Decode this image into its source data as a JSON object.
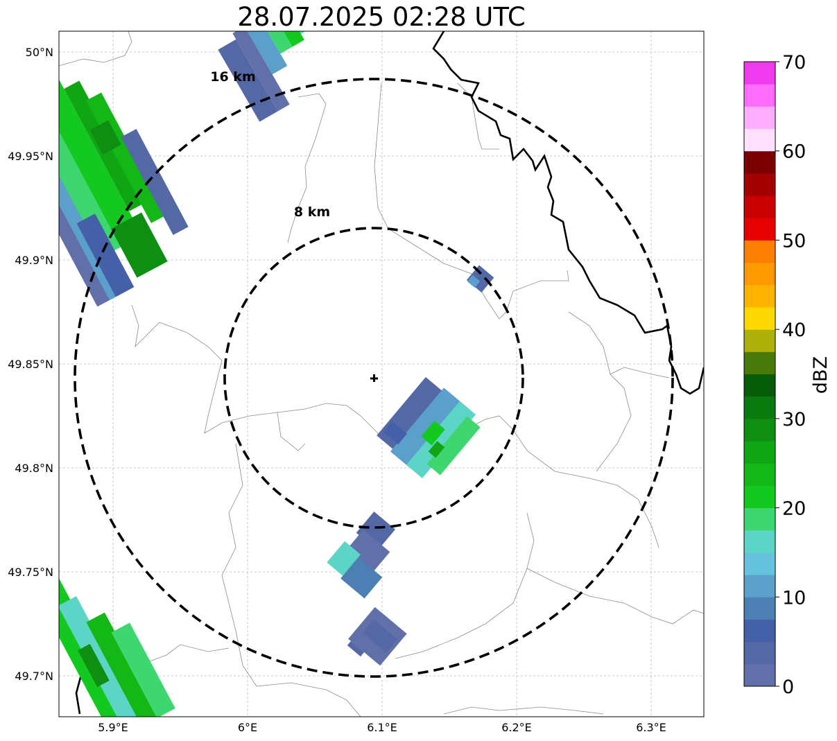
{
  "title": "28.07.2025 02:28 UTC",
  "lon_ticks": [
    "5.9°E",
    "6°E",
    "6.1°E",
    "6.2°E",
    "6.3°E"
  ],
  "lat_ticks": [
    "50°N",
    "49.95°N",
    "49.9°N",
    "49.85°N",
    "49.8°N",
    "49.75°N",
    "49.7°N"
  ],
  "rings": [
    {
      "label": "8 km",
      "radius_km": 8
    },
    {
      "label": "16 km",
      "radius_km": 16
    }
  ],
  "radar_site": {
    "lon": 6.096,
    "lat": 49.844
  },
  "colorbar": {
    "label": "dBZ",
    "ticks": [
      "0",
      "10",
      "20",
      "30",
      "40",
      "50",
      "60",
      "70"
    ],
    "min": 0,
    "max": 70,
    "step": 2.5,
    "colors": [
      "#6170a8",
      "#5468a6",
      "#4460a8",
      "#4e7fb4",
      "#5b9fcb",
      "#66c3dd",
      "#5dd5c6",
      "#3ed66f",
      "#13c91f",
      "#13b817",
      "#10a613",
      "#0e8f11",
      "#0b7a0e",
      "#055e07",
      "#497a09",
      "#adb10a",
      "#ffd800",
      "#ffb200",
      "#ff9a00",
      "#ff7f00",
      "#e60000",
      "#c80000",
      "#a30000",
      "#7a0000",
      "#ffe0ff",
      "#ffadff",
      "#ff6cff",
      "#f03af0"
    ]
  },
  "colors": {
    "border": "#000000",
    "admin": "#8a8a8a",
    "grid": "#b8b8b8"
  }
}
